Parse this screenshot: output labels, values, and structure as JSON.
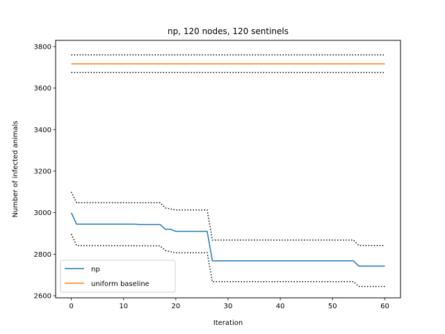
{
  "chart_data": {
    "type": "line",
    "title": "np, 120 nodes, 120 sentinels",
    "xlabel": "Iteration",
    "ylabel": "Number of infected animals",
    "xlim": [
      -3,
      63
    ],
    "ylim": [
      2590,
      3830
    ],
    "xticks": [
      0,
      10,
      20,
      30,
      40,
      50,
      60
    ],
    "yticks": [
      2600,
      2800,
      3000,
      3200,
      3400,
      3600,
      3800
    ],
    "grid": false,
    "legend_position": "lower-left",
    "series": [
      {
        "name": "np",
        "color": "#1f77b4",
        "style": "solid",
        "x": [
          0,
          1,
          12,
          13,
          17,
          18,
          19,
          20,
          26,
          27,
          54,
          55,
          60
        ],
        "y": [
          3000,
          2945,
          2945,
          2943,
          2943,
          2920,
          2920,
          2910,
          2910,
          2768,
          2768,
          2743,
          2743
        ]
      },
      {
        "name": "uniform baseline",
        "color": "#ff7f0e",
        "style": "solid",
        "x": [
          0,
          60
        ],
        "y": [
          3717,
          3717
        ]
      },
      {
        "color": "#000000",
        "style": "dotted",
        "x": [
          0,
          60
        ],
        "y": [
          3760,
          3760
        ]
      },
      {
        "color": "#000000",
        "style": "dotted",
        "x": [
          0,
          60
        ],
        "y": [
          3675,
          3675
        ]
      },
      {
        "color": "#000000",
        "style": "dotted",
        "x": [
          0,
          1,
          17,
          18,
          20,
          26,
          27,
          54,
          55,
          60
        ],
        "y": [
          3100,
          3048,
          3048,
          3023,
          3013,
          3013,
          2868,
          2868,
          2842,
          2842
        ]
      },
      {
        "color": "#000000",
        "style": "dotted",
        "x": [
          0,
          1,
          17,
          18,
          20,
          26,
          27,
          54,
          55,
          60
        ],
        "y": [
          2897,
          2842,
          2840,
          2818,
          2807,
          2807,
          2668,
          2668,
          2645,
          2645
        ]
      }
    ]
  }
}
